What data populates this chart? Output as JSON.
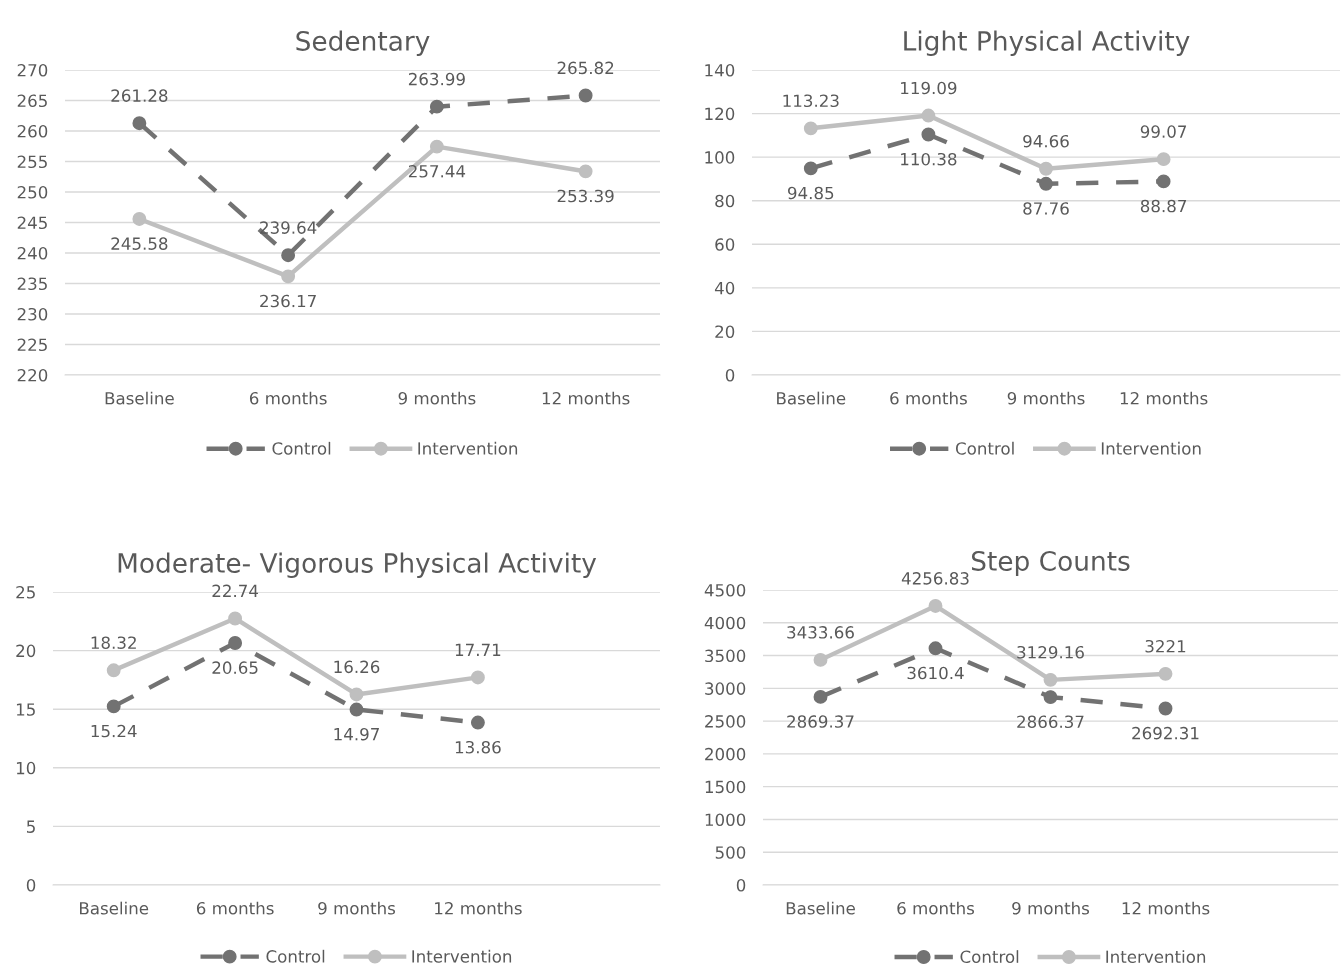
{
  "chart_data": [
    {
      "type": "line",
      "title": "Sedentary",
      "categories": [
        "Baseline",
        "6 months",
        "9 months",
        "12 months"
      ],
      "ylim": [
        220,
        270
      ],
      "yticks": [
        220,
        225,
        230,
        235,
        240,
        245,
        250,
        255,
        260,
        265,
        270
      ],
      "grid": "y",
      "legend": "bottom",
      "marker": "circle",
      "data_labels": true,
      "series": [
        {
          "name": "Control",
          "color": "#727272",
          "line_style": "dashed",
          "values": [
            261.28,
            239.64,
            263.99,
            265.82
          ]
        },
        {
          "name": "Intervention",
          "color": "#bfbfbf",
          "line_style": "solid",
          "values": [
            245.58,
            236.17,
            257.44,
            253.39
          ]
        }
      ]
    },
    {
      "type": "line",
      "title": "Light Physical Activity",
      "categories": [
        "Baseline",
        "6 months",
        "9 months",
        "12 months",
        null
      ],
      "ylim": [
        0,
        140
      ],
      "yticks": [
        0,
        20,
        40,
        60,
        80,
        100,
        120,
        140
      ],
      "grid": "y",
      "legend": "bottom",
      "marker": "circle",
      "data_labels": true,
      "series": [
        {
          "name": "Control",
          "color": "#727272",
          "line_style": "dashed",
          "values": [
            94.85,
            110.38,
            87.76,
            88.87,
            null
          ]
        },
        {
          "name": "Intervention",
          "color": "#bfbfbf",
          "line_style": "solid",
          "values": [
            113.23,
            119.09,
            94.66,
            99.07,
            null
          ]
        }
      ]
    },
    {
      "type": "line",
      "title": "Moderate- Vigorous Physical Activity",
      "categories": [
        "Baseline",
        "6 months",
        "9 months",
        "12 months",
        null
      ],
      "ylim": [
        0,
        25
      ],
      "yticks": [
        0,
        5,
        10,
        15,
        20,
        25
      ],
      "grid": "y",
      "legend": "bottom",
      "marker": "circle",
      "data_labels": true,
      "series": [
        {
          "name": "Control",
          "color": "#727272",
          "line_style": "dashed",
          "values": [
            15.24,
            20.65,
            14.97,
            13.86,
            null
          ]
        },
        {
          "name": "Intervention",
          "color": "#bfbfbf",
          "line_style": "solid",
          "values": [
            18.32,
            22.74,
            16.26,
            17.71,
            null
          ]
        }
      ]
    },
    {
      "type": "line",
      "title": "Step Counts",
      "categories": [
        "Baseline",
        "6 months",
        "9 months",
        "12 months",
        null
      ],
      "ylim": [
        0,
        4500
      ],
      "yticks": [
        0,
        500,
        1000,
        1500,
        2000,
        2500,
        3000,
        3500,
        4000,
        4500
      ],
      "grid": "y",
      "legend": "bottom",
      "marker": "circle",
      "data_labels": true,
      "series": [
        {
          "name": "Control",
          "color": "#727272",
          "line_style": "dashed",
          "values": [
            2869.37,
            3610.4,
            2866.37,
            2692.31,
            null
          ]
        },
        {
          "name": "Intervention",
          "color": "#bfbfbf",
          "line_style": "solid",
          "values": [
            3433.66,
            4256.83,
            3129.16,
            3221,
            null
          ]
        }
      ]
    }
  ]
}
